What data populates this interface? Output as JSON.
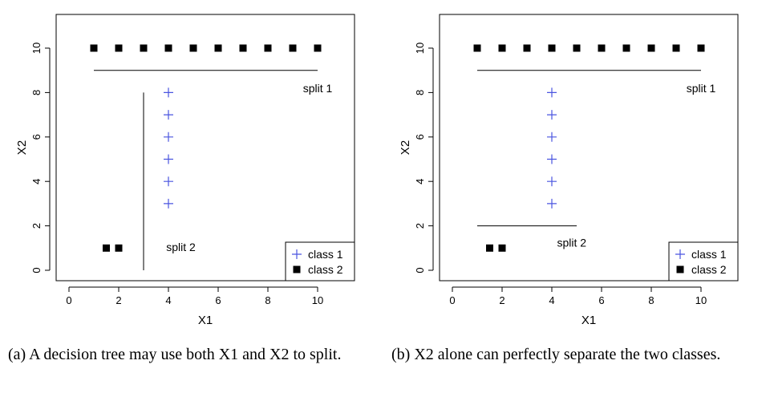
{
  "chart_data": [
    {
      "type": "scatter",
      "xlabel": "X1",
      "ylabel": "X2",
      "xlim": [
        0,
        10
      ],
      "ylim": [
        0,
        10
      ],
      "xticks": [
        0,
        2,
        4,
        6,
        8,
        10
      ],
      "yticks": [
        0,
        2,
        4,
        6,
        8,
        10
      ],
      "series": [
        {
          "name": "class 1",
          "marker": "plus",
          "color": "#4a55e0",
          "x": [
            4,
            4,
            4,
            4,
            4,
            4
          ],
          "y": [
            3,
            4,
            5,
            6,
            7,
            8
          ]
        },
        {
          "name": "class 2",
          "marker": "square",
          "color": "#000000",
          "x": [
            1,
            2,
            3,
            4,
            5,
            6,
            7,
            8,
            9,
            10,
            1.5,
            2
          ],
          "y": [
            10,
            10,
            10,
            10,
            10,
            10,
            10,
            10,
            10,
            10,
            1,
            1
          ]
        }
      ],
      "splits": [
        {
          "label": "split 1",
          "orientation": "horizontal",
          "at": 9,
          "from": 1,
          "to": 10,
          "label_x": 10,
          "label_y": 8.2
        },
        {
          "label": "split 2",
          "orientation": "vertical",
          "at": 3,
          "from": 0,
          "to": 8,
          "label_x": 4.5,
          "label_y": 1.05
        }
      ],
      "legend_position": "bottom-right",
      "caption": "(a) A decision tree may use both X1 and X2 to split."
    },
    {
      "type": "scatter",
      "xlabel": "X1",
      "ylabel": "X2",
      "xlim": [
        0,
        10
      ],
      "ylim": [
        0,
        10
      ],
      "xticks": [
        0,
        2,
        4,
        6,
        8,
        10
      ],
      "yticks": [
        0,
        2,
        4,
        6,
        8,
        10
      ],
      "series": [
        {
          "name": "class 1",
          "marker": "plus",
          "color": "#4a55e0",
          "x": [
            4,
            4,
            4,
            4,
            4,
            4
          ],
          "y": [
            3,
            4,
            5,
            6,
            7,
            8
          ]
        },
        {
          "name": "class 2",
          "marker": "square",
          "color": "#000000",
          "x": [
            1,
            2,
            3,
            4,
            5,
            6,
            7,
            8,
            9,
            10,
            1.5,
            2
          ],
          "y": [
            10,
            10,
            10,
            10,
            10,
            10,
            10,
            10,
            10,
            10,
            1,
            1
          ]
        }
      ],
      "splits": [
        {
          "label": "split 1",
          "orientation": "horizontal",
          "at": 9,
          "from": 1,
          "to": 10,
          "label_x": 10,
          "label_y": 8.2
        },
        {
          "label": "split 2",
          "orientation": "horizontal",
          "at": 2,
          "from": 1,
          "to": 5,
          "label_x": 4.8,
          "label_y": 1.25
        }
      ],
      "legend_position": "bottom-right",
      "caption": "(b) X2 alone can perfectly separate the two classes."
    }
  ]
}
